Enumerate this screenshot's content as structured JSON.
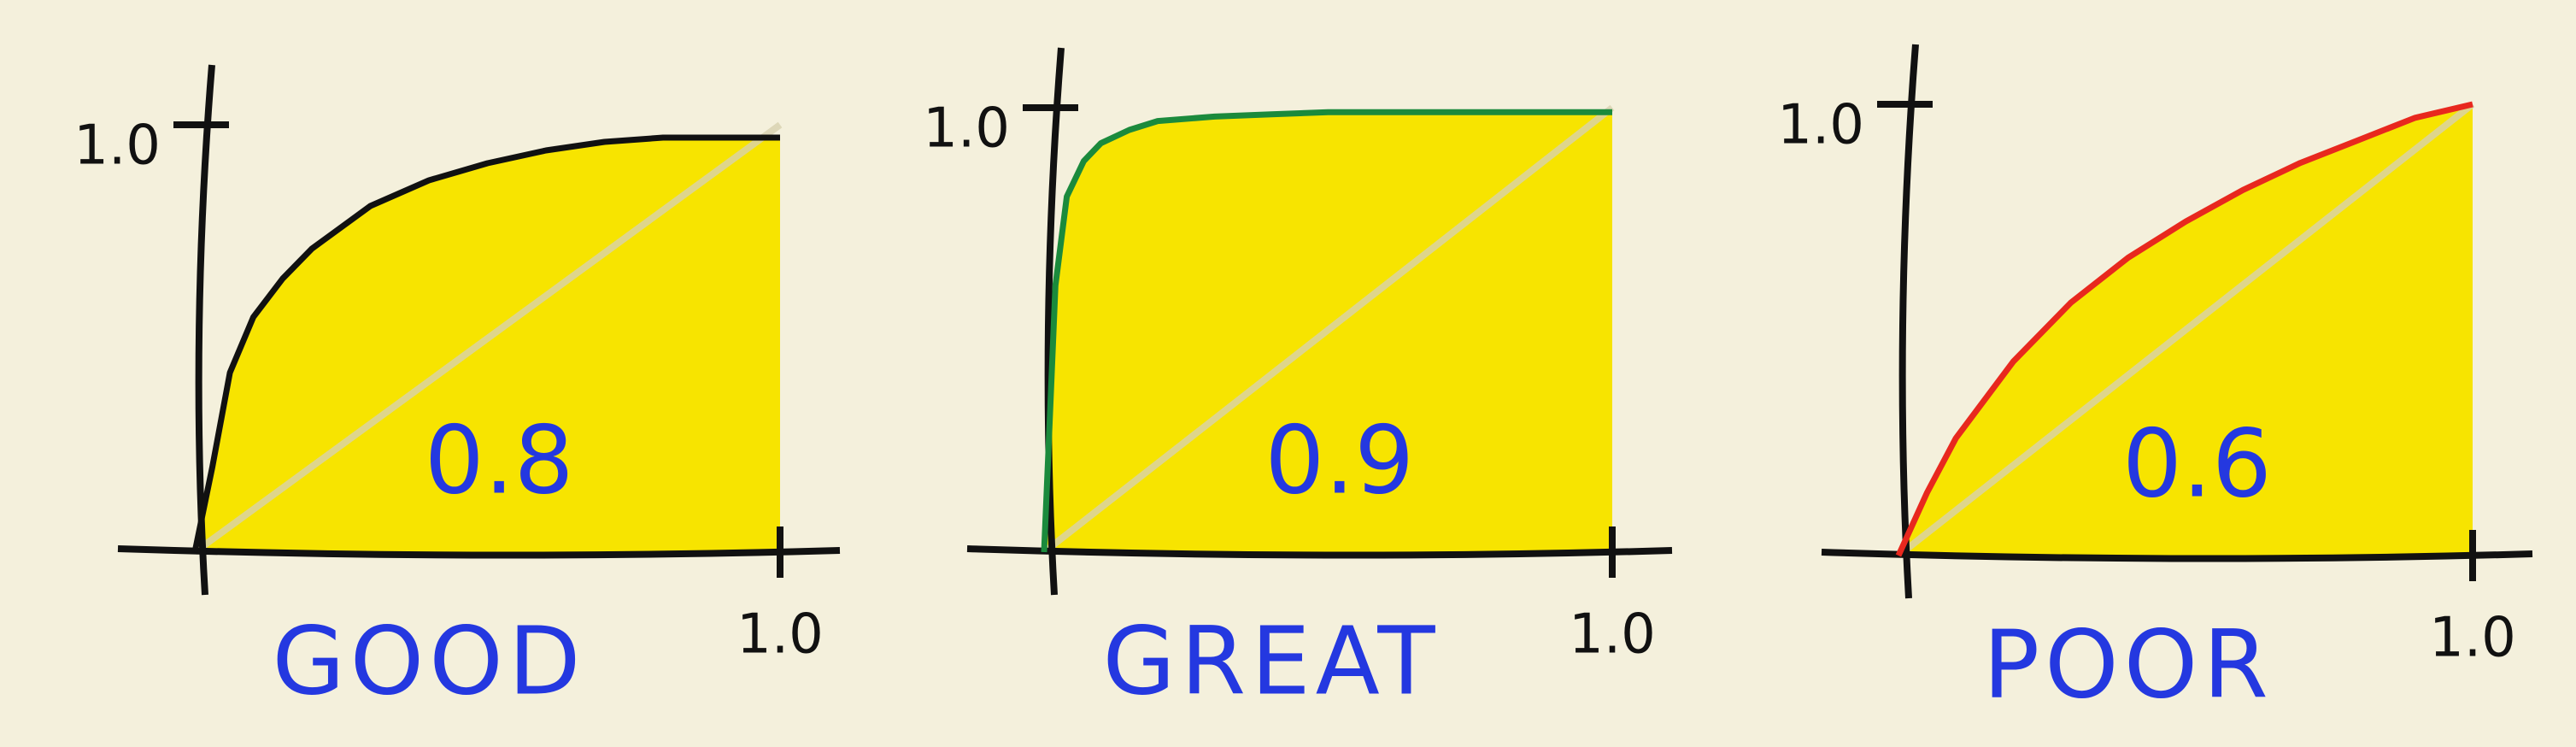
{
  "chart_data": [
    {
      "type": "area",
      "caption": "GOOD",
      "annotation": 0.8,
      "color": "#111111",
      "fill": "#f7e400",
      "x": [
        0,
        0.03,
        0.06,
        0.1,
        0.15,
        0.2,
        0.3,
        0.4,
        0.5,
        0.6,
        0.7,
        0.8,
        0.9,
        1
      ],
      "values": [
        0,
        0.2,
        0.42,
        0.55,
        0.64,
        0.71,
        0.81,
        0.87,
        0.91,
        0.94,
        0.96,
        0.97,
        0.97,
        0.97
      ],
      "xlim": [
        0,
        1
      ],
      "ylim": [
        0,
        1
      ],
      "xticks": [
        {
          "value": 1,
          "label": "1.0"
        }
      ],
      "yticks": [
        {
          "value": 1,
          "label": "1.0"
        }
      ]
    },
    {
      "type": "area",
      "caption": "GREAT",
      "annotation": 0.9,
      "color": "#1b8a3c",
      "fill": "#f7e400",
      "x": [
        0,
        0.01,
        0.02,
        0.04,
        0.07,
        0.1,
        0.15,
        0.2,
        0.3,
        0.4,
        0.5,
        0.6,
        0.7,
        0.8,
        0.9,
        1
      ],
      "values": [
        0,
        0.3,
        0.6,
        0.8,
        0.88,
        0.92,
        0.95,
        0.97,
        0.98,
        0.985,
        0.99,
        0.99,
        0.99,
        0.99,
        0.99,
        0.99
      ],
      "xlim": [
        0,
        1
      ],
      "ylim": [
        0,
        1
      ],
      "xticks": [
        {
          "value": 1,
          "label": "1.0"
        }
      ],
      "yticks": [
        {
          "value": 1,
          "label": "1.0"
        }
      ]
    },
    {
      "type": "area",
      "caption": "POOR",
      "annotation": 0.6,
      "color": "#e8281e",
      "fill": "#f7e400",
      "x": [
        0,
        0.05,
        0.1,
        0.2,
        0.3,
        0.4,
        0.5,
        0.6,
        0.7,
        0.8,
        0.9,
        1
      ],
      "values": [
        0,
        0.14,
        0.26,
        0.43,
        0.56,
        0.66,
        0.74,
        0.81,
        0.87,
        0.92,
        0.97,
        1.0
      ],
      "xlim": [
        0,
        1
      ],
      "ylim": [
        0,
        1
      ],
      "xticks": [
        {
          "value": 1,
          "label": "1.0"
        }
      ],
      "yticks": [
        {
          "value": 1,
          "label": "1.0"
        }
      ]
    }
  ]
}
